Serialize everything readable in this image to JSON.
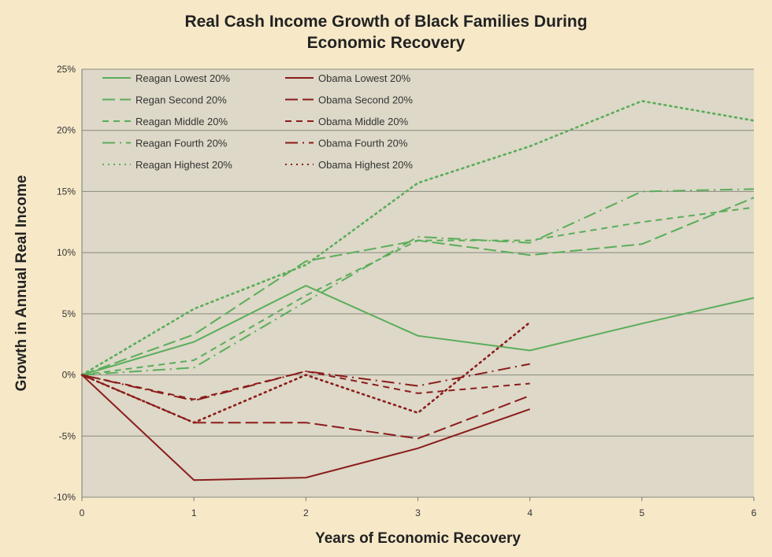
{
  "chart_data": {
    "type": "line",
    "title_line1": "Real Cash Income Growth of Black Families During",
    "title_line2": "Economic Recovery",
    "xlabel": "Years of Economic Recovery",
    "ylabel": "Growth in Annual Real Income",
    "xlim": [
      0,
      6
    ],
    "ylim": [
      -10,
      25
    ],
    "x_ticks": [
      "0",
      "1",
      "2",
      "3",
      "4",
      "5",
      "6"
    ],
    "y_ticks": [
      "-10%",
      "-5%",
      "0%",
      "5%",
      "10%",
      "15%",
      "20%",
      "25%"
    ],
    "y_tick_values": [
      -10,
      -5,
      0,
      5,
      10,
      15,
      20,
      25
    ],
    "grid": true,
    "legend_placement": "top-left",
    "colors": {
      "reagan": "#5aad5a",
      "obama": "#8b1c1c",
      "plot_bg": "#ddd8c7",
      "page_bg": "#f7e9c8"
    },
    "series": [
      {
        "name": "Reagan Lowest 20%",
        "group": "reagan",
        "dash": "solid",
        "x": [
          0,
          1,
          2,
          3,
          4,
          5,
          6
        ],
        "values": [
          0,
          2.7,
          7.3,
          3.2,
          2.0,
          4.2,
          6.3
        ]
      },
      {
        "name": "Regan Second 20%",
        "group": "reagan",
        "dash": "longdash",
        "x": [
          0,
          1,
          2,
          3,
          4,
          5,
          6
        ],
        "values": [
          0,
          3.3,
          9.3,
          11.0,
          9.8,
          10.7,
          14.5
        ]
      },
      {
        "name": "Reagan Middle 20%",
        "group": "reagan",
        "dash": "dash",
        "x": [
          0,
          1,
          2,
          3,
          4,
          5,
          6
        ],
        "values": [
          0,
          1.2,
          6.5,
          11.0,
          11.0,
          12.5,
          13.7
        ]
      },
      {
        "name": "Reagan Fourth 20%",
        "group": "reagan",
        "dash": "dashdot",
        "x": [
          0,
          1,
          2,
          3,
          4,
          5,
          6
        ],
        "values": [
          0,
          0.6,
          6.0,
          11.3,
          10.8,
          15.0,
          15.2
        ]
      },
      {
        "name": "Reagan Highest 20%",
        "group": "reagan",
        "dash": "dot",
        "x": [
          0,
          1,
          2,
          3,
          4,
          5,
          6
        ],
        "values": [
          0,
          5.4,
          9.0,
          15.7,
          18.7,
          22.4,
          20.8
        ]
      },
      {
        "name": "Obama Lowest 20%",
        "group": "obama",
        "dash": "solid",
        "x": [
          0,
          1,
          2,
          3,
          4
        ],
        "values": [
          0,
          -8.6,
          -8.4,
          -6.0,
          -2.8
        ]
      },
      {
        "name": "Obama Second 20%",
        "group": "obama",
        "dash": "longdash",
        "x": [
          0,
          1,
          2,
          3,
          4
        ],
        "values": [
          0,
          -3.9,
          -3.9,
          -5.2,
          -1.7
        ]
      },
      {
        "name": "Obama Middle 20%",
        "group": "obama",
        "dash": "dash",
        "x": [
          0,
          1,
          2,
          3,
          4
        ],
        "values": [
          0,
          -2.0,
          0.3,
          -1.5,
          -0.7
        ]
      },
      {
        "name": "Obama Fourth 20%",
        "group": "obama",
        "dash": "dashdot",
        "x": [
          0,
          1,
          2,
          3,
          4
        ],
        "values": [
          0,
          -2.1,
          0.3,
          -0.9,
          0.9
        ]
      },
      {
        "name": "Obama Highest 20%",
        "group": "obama",
        "dash": "dot",
        "x": [
          0,
          1,
          2,
          3,
          4
        ],
        "values": [
          0,
          -3.9,
          0.0,
          -3.1,
          4.3
        ]
      }
    ]
  }
}
